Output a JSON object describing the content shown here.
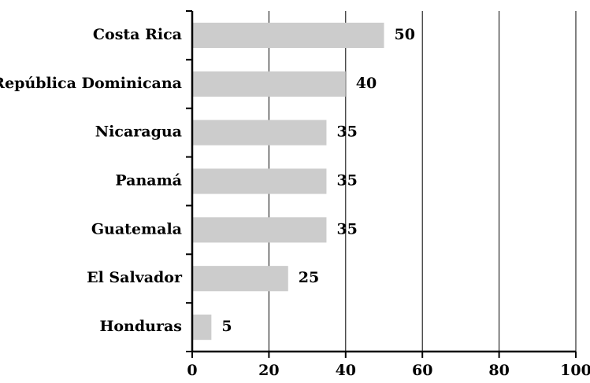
{
  "chart_data": {
    "type": "bar",
    "orientation": "horizontal",
    "title": "",
    "xlabel": "",
    "ylabel": "",
    "categories": [
      "Costa Rica",
      "República Dominicana",
      "Nicaragua",
      "Panamá",
      "Guatemala",
      "El Salvador",
      "Honduras"
    ],
    "values": [
      50,
      40,
      35,
      35,
      35,
      25,
      5
    ],
    "value_labels": [
      "50",
      "40",
      "35",
      "35",
      "35",
      "25",
      "5"
    ],
    "xlim": [
      0,
      100
    ],
    "xticks": [
      0,
      20,
      40,
      60,
      80,
      100
    ],
    "xtick_labels": [
      "0",
      "20",
      "40",
      "60",
      "80",
      "100"
    ],
    "grid": "vertical",
    "legend": "none",
    "colors": {
      "bar": "#cccccc",
      "axis": "#000000",
      "grid": "#000000",
      "text": "#000000"
    }
  }
}
